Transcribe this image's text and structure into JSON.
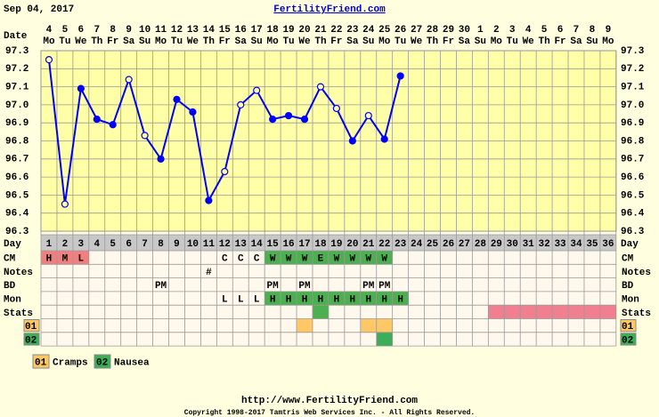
{
  "chart_data": {
    "type": "line",
    "header_date": "Sep 04, 2017",
    "title": "FertilityFriend.com",
    "date_axis_label": "Date",
    "dates": [
      4,
      5,
      6,
      7,
      8,
      9,
      10,
      11,
      12,
      13,
      14,
      15,
      16,
      17,
      18,
      19,
      20,
      21,
      22,
      23,
      24,
      25,
      26,
      27,
      28,
      29,
      30,
      1,
      2,
      3,
      4,
      5,
      6,
      7,
      8,
      9
    ],
    "weekdays": [
      "Mo",
      "Tu",
      "We",
      "Th",
      "Fr",
      "Sa",
      "Su",
      "Mo",
      "Tu",
      "We",
      "Th",
      "Fr",
      "Sa",
      "Su",
      "Mo",
      "Tu",
      "We",
      "Th",
      "Fr",
      "Sa",
      "Su",
      "Mo",
      "Tu",
      "We",
      "Th",
      "Fr",
      "Sa",
      "Su",
      "Mo",
      "Tu",
      "We",
      "Th",
      "Fr",
      "Sa",
      "Su",
      "Mo"
    ],
    "day_row_label": "Day",
    "days": [
      1,
      2,
      3,
      4,
      5,
      6,
      7,
      8,
      9,
      10,
      11,
      12,
      13,
      14,
      15,
      16,
      17,
      18,
      19,
      20,
      21,
      22,
      23,
      24,
      25,
      26,
      27,
      28,
      29,
      30,
      31,
      32,
      33,
      34,
      35,
      36
    ],
    "series": [
      {
        "name": "Temperature",
        "color": "#0000ff",
        "values": [
          97.25,
          96.45,
          97.09,
          96.92,
          96.89,
          97.14,
          96.83,
          96.7,
          97.03,
          96.96,
          96.47,
          96.63,
          97.0,
          97.08,
          96.92,
          96.94,
          96.92,
          97.1,
          96.98,
          96.8,
          96.94,
          96.81,
          97.16,
          null,
          null,
          null,
          null,
          null,
          null,
          null,
          null,
          null,
          null,
          null,
          null,
          null
        ],
        "point_styles": [
          "hollow",
          "hollow",
          "solid",
          "solid",
          "solid",
          "hollow",
          "hollow",
          "solid",
          "solid",
          "solid",
          "solid",
          "hollow",
          "hollow",
          "hollow",
          "solid",
          "solid",
          "solid",
          "hollow",
          "hollow",
          "solid",
          "hollow",
          "solid",
          "solid",
          null,
          null,
          null,
          null,
          null,
          null,
          null,
          null,
          null,
          null,
          null,
          null,
          null
        ]
      }
    ],
    "ylim": [
      96.3,
      97.3
    ],
    "yticks": [
      97.3,
      97.2,
      97.1,
      {
        "value": 97,
        "label": "97.0"
      },
      96.9,
      96.8,
      96.7,
      96.6,
      96.5,
      96.4,
      96.3
    ],
    "grid": true,
    "rows": [
      {
        "label": "CM",
        "cells": [
          "H",
          "M",
          "L",
          null,
          null,
          null,
          null,
          null,
          null,
          null,
          null,
          "C",
          "C",
          "C",
          "W",
          "W",
          "W",
          "E",
          "W",
          "W",
          "W",
          "W",
          null,
          null,
          null,
          null,
          null,
          null,
          null,
          null,
          null,
          null,
          null,
          null,
          null,
          null
        ],
        "fills": [
          "#f08080",
          "#f08080",
          "#f08080",
          null,
          null,
          null,
          null,
          null,
          null,
          null,
          null,
          null,
          null,
          null,
          "#4caf50",
          "#4caf50",
          "#4caf50",
          "#4caf50",
          "#4caf50",
          "#4caf50",
          "#4caf50",
          "#4caf50",
          null,
          null,
          null,
          null,
          null,
          null,
          null,
          null,
          null,
          null,
          null,
          null,
          null,
          null
        ]
      },
      {
        "label": "Notes",
        "cells": [
          null,
          null,
          null,
          null,
          null,
          null,
          null,
          null,
          null,
          null,
          "#",
          null,
          null,
          null,
          null,
          null,
          null,
          null,
          null,
          null,
          null,
          null,
          null,
          null,
          null,
          null,
          null,
          null,
          null,
          null,
          null,
          null,
          null,
          null,
          null,
          null
        ]
      },
      {
        "label": "BD",
        "cells": [
          null,
          null,
          null,
          null,
          null,
          null,
          null,
          "PM",
          null,
          null,
          null,
          null,
          null,
          null,
          "PM",
          null,
          "PM",
          null,
          null,
          null,
          "PM",
          "PM",
          null,
          null,
          null,
          null,
          null,
          null,
          null,
          null,
          null,
          null,
          null,
          null,
          null,
          null
        ]
      },
      {
        "label": "Mon",
        "cells": [
          null,
          null,
          null,
          null,
          null,
          null,
          null,
          null,
          null,
          null,
          null,
          "L",
          "L",
          "L",
          "H",
          "H",
          "H",
          "H",
          "H",
          "H",
          "H",
          "H",
          "H",
          null,
          null,
          null,
          null,
          null,
          null,
          null,
          null,
          null,
          null,
          null,
          null,
          null
        ],
        "fills": [
          null,
          null,
          null,
          null,
          null,
          null,
          null,
          null,
          null,
          null,
          null,
          null,
          null,
          null,
          "#4caf50",
          "#4caf50",
          "#4caf50",
          "#4caf50",
          "#4caf50",
          "#4caf50",
          "#4caf50",
          "#4caf50",
          "#4caf50",
          null,
          null,
          null,
          null,
          null,
          null,
          null,
          null,
          null,
          null,
          null,
          null,
          null
        ]
      },
      {
        "label": "Stats",
        "fills": [
          null,
          null,
          null,
          null,
          null,
          null,
          null,
          null,
          null,
          null,
          null,
          null,
          null,
          null,
          null,
          null,
          null,
          "#4caf50",
          null,
          null,
          null,
          null,
          null,
          null,
          null,
          null,
          null,
          null,
          "#f08090",
          "#f08090",
          "#f08090",
          "#f08090",
          "#f08090",
          "#f08090",
          "#f08090",
          "#f08090"
        ]
      },
      {
        "label": "01",
        "label_fill": "#ffc864",
        "fills": [
          null,
          null,
          null,
          null,
          null,
          null,
          null,
          null,
          null,
          null,
          null,
          null,
          null,
          null,
          null,
          null,
          "#ffc864",
          null,
          null,
          null,
          "#ffc864",
          "#ffc864",
          null,
          null,
          null,
          null,
          null,
          null,
          null,
          null,
          null,
          null,
          null,
          null,
          null,
          null
        ]
      },
      {
        "label": "02",
        "label_fill": "#3cae5a",
        "fills": [
          null,
          null,
          null,
          null,
          null,
          null,
          null,
          null,
          null,
          null,
          null,
          null,
          null,
          null,
          null,
          null,
          null,
          null,
          null,
          null,
          null,
          "#3cae5a",
          null,
          null,
          null,
          null,
          null,
          null,
          null,
          null,
          null,
          null,
          null,
          null,
          null,
          null
        ]
      }
    ],
    "legend": [
      {
        "code": "01",
        "label": "Cramps",
        "color": "#ffc864"
      },
      {
        "code": "02",
        "label": "Nausea",
        "color": "#3cae5a"
      }
    ],
    "footer_url": "http://www.FertilityFriend.com",
    "copyright": "Copyright 1998-2017 Tamtris Web Services Inc. - All Rights Reserved."
  }
}
